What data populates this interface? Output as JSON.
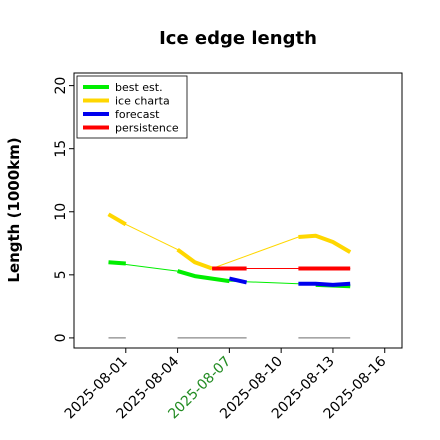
{
  "chart_data": {
    "type": "line",
    "title": "Ice edge length",
    "xlabel": "",
    "ylabel": "Length (1000km)",
    "xlim": [
      "2025-07-29",
      "2025-08-17"
    ],
    "ylim": [
      -0.8,
      21
    ],
    "y_ticks": [
      0,
      5,
      10,
      15,
      20
    ],
    "x_ticks": [
      {
        "date": "2025-08-01",
        "label": "2025-08-01",
        "color": "#000000"
      },
      {
        "date": "2025-08-04",
        "label": "2025-08-04",
        "color": "#000000"
      },
      {
        "date": "2025-08-07",
        "label": "2025-08-07",
        "color": "#228B22"
      },
      {
        "date": "2025-08-10",
        "label": "2025-08-10",
        "color": "#000000"
      },
      {
        "date": "2025-08-13",
        "label": "2025-08-13",
        "color": "#000000"
      },
      {
        "date": "2025-08-16",
        "label": "2025-08-16",
        "color": "#000000"
      }
    ],
    "legend_position": "top-left",
    "grid": false,
    "series": [
      {
        "name": "best est.",
        "color": "#00ee00",
        "thin_line": [
          [
            "2025-07-31",
            6.0
          ],
          [
            "2025-08-04",
            5.3
          ],
          [
            "2025-08-05",
            4.9
          ],
          [
            "2025-08-07",
            4.5
          ],
          [
            "2025-08-11",
            4.3
          ],
          [
            "2025-08-14",
            4.1
          ]
        ],
        "thick_segments": [
          [
            [
              "2025-07-31",
              6.0
            ],
            [
              "2025-08-01",
              5.9
            ]
          ],
          [
            [
              "2025-08-04",
              5.3
            ],
            [
              "2025-08-05",
              4.9
            ],
            [
              "2025-08-07",
              4.5
            ]
          ],
          [
            [
              "2025-08-12",
              4.2
            ],
            [
              "2025-08-14",
              4.1
            ]
          ]
        ]
      },
      {
        "name": "ice charta",
        "color": "#ffd700",
        "thin_line": [
          [
            "2025-07-31",
            9.8
          ],
          [
            "2025-08-01",
            9.0
          ],
          [
            "2025-08-04",
            7.0
          ],
          [
            "2025-08-05",
            6.0
          ],
          [
            "2025-08-06",
            5.5
          ],
          [
            "2025-08-11",
            8.0
          ],
          [
            "2025-08-12",
            8.1
          ],
          [
            "2025-08-13",
            7.6
          ],
          [
            "2025-08-14",
            6.8
          ]
        ],
        "thick_segments": [
          [
            [
              "2025-07-31",
              9.8
            ],
            [
              "2025-08-01",
              9.0
            ]
          ],
          [
            [
              "2025-08-04",
              7.0
            ],
            [
              "2025-08-05",
              6.0
            ],
            [
              "2025-08-06",
              5.5
            ]
          ],
          [
            [
              "2025-08-11",
              8.0
            ],
            [
              "2025-08-12",
              8.1
            ],
            [
              "2025-08-13",
              7.6
            ],
            [
              "2025-08-14",
              6.8
            ]
          ]
        ]
      },
      {
        "name": "forecast",
        "color": "#0000ee",
        "thin_line": [],
        "thick_segments": [
          [
            [
              "2025-08-07",
              4.7
            ],
            [
              "2025-08-08",
              4.4
            ]
          ],
          [
            [
              "2025-08-11",
              4.3
            ],
            [
              "2025-08-12",
              4.3
            ],
            [
              "2025-08-13",
              4.2
            ],
            [
              "2025-08-14",
              4.3
            ]
          ]
        ]
      },
      {
        "name": "persistence",
        "color": "#ff0000",
        "thin_line": [
          [
            "2025-08-06",
            5.5
          ],
          [
            "2025-08-14",
            5.5
          ]
        ],
        "thick_segments": [
          [
            [
              "2025-08-06",
              5.5
            ],
            [
              "2025-08-08",
              5.5
            ]
          ],
          [
            [
              "2025-08-11",
              5.5
            ],
            [
              "2025-08-14",
              5.5
            ]
          ]
        ]
      }
    ],
    "zero_marks": [
      [
        [
          "2025-07-31",
          0
        ],
        [
          "2025-08-01",
          0
        ]
      ],
      [
        [
          "2025-08-04",
          0
        ],
        [
          "2025-08-08",
          0
        ]
      ],
      [
        [
          "2025-08-11",
          0
        ],
        [
          "2025-08-14",
          0
        ]
      ]
    ],
    "zero_mark_color": "#888888"
  }
}
